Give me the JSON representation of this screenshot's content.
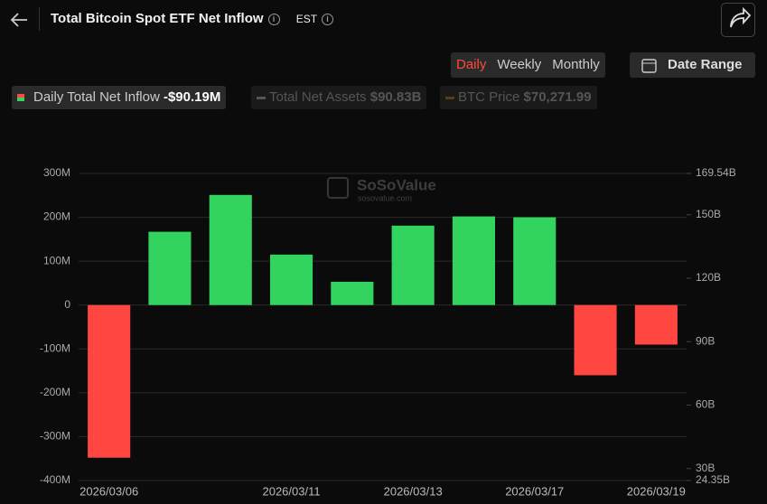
{
  "header": {
    "title": "Total Bitcoin Spot ETF Net Inflow",
    "timezone": "EST"
  },
  "controls": {
    "periods": [
      "Daily",
      "Weekly",
      "Monthly"
    ],
    "date_range": "Date Range"
  },
  "legend": [
    {
      "name": "Daily Total Net Inflow",
      "value": "-$90.19M"
    },
    {
      "name": "Total Net Assets",
      "value": "$90.83B"
    },
    {
      "name": "BTC Price",
      "value": "$70,271.99"
    }
  ],
  "watermark": {
    "brand": "SoSoValue",
    "site": "sosovalue.com"
  },
  "chart_data": {
    "type": "bar",
    "categories": [
      "2026/03/06",
      null,
      null,
      "2026/03/11",
      null,
      "2026/03/13",
      null,
      "2026/03/17",
      null,
      "2026/03/19"
    ],
    "values": [
      -348,
      167,
      251,
      115,
      53,
      181,
      202,
      200,
      -160,
      -90.19
    ],
    "colors": {
      "positive": "#33d35f",
      "negative": "#ff4640"
    },
    "ylim": [
      -400,
      300
    ],
    "yticks": [
      {
        "value": -400,
        "label": "-400M"
      },
      {
        "value": -300,
        "label": "-300M"
      },
      {
        "value": -200,
        "label": "-200M"
      },
      {
        "value": -100,
        "label": "-100M"
      },
      0,
      {
        "value": 100,
        "label": "100M"
      },
      {
        "value": 200,
        "label": "200M"
      },
      {
        "value": 300,
        "label": "300M"
      }
    ],
    "y2lim": [
      24.35,
      169.54
    ],
    "y2ticks": [
      {
        "value": 24.35,
        "label": "24.35B"
      },
      {
        "value": 30,
        "label": "30B"
      },
      {
        "value": 60,
        "label": "60B"
      },
      {
        "value": 90,
        "label": "90B"
      },
      {
        "value": 120,
        "label": "120B"
      },
      {
        "value": 150,
        "label": "150B"
      },
      {
        "value": 169.54,
        "label": "169.54B"
      }
    ],
    "grid": true
  }
}
